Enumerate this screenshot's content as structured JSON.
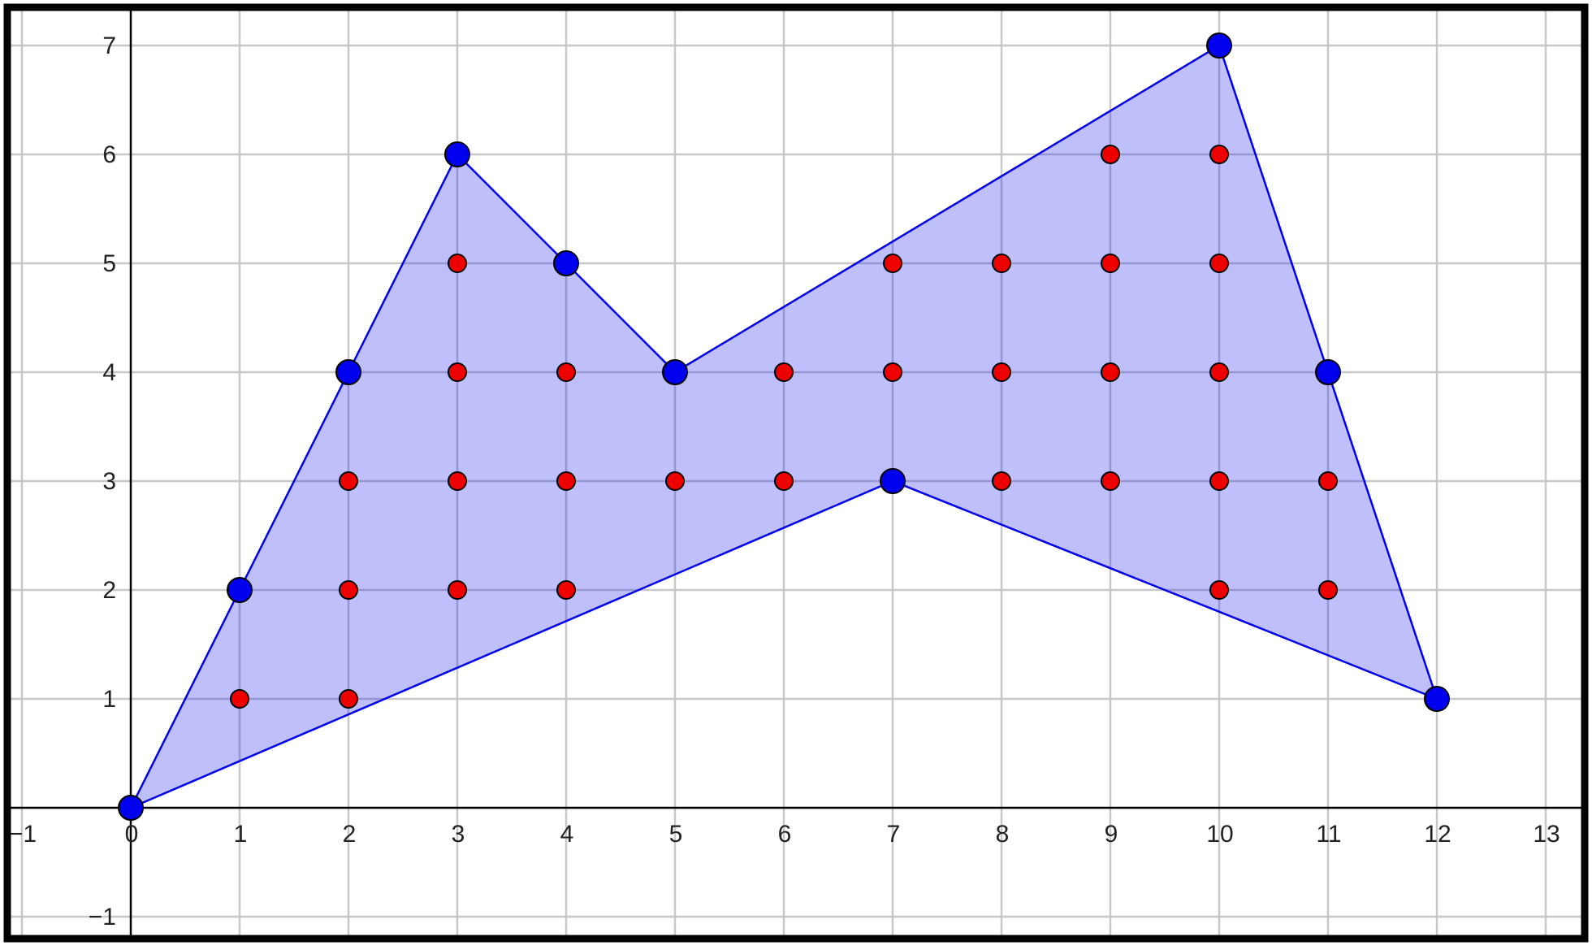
{
  "colors": {
    "polygon_fill": "#0000ee",
    "polygon_stroke": "#0000ee",
    "vertex": "#0000ee",
    "interior_point": "#ee0000",
    "grid": "#c8c8c8",
    "axis": "#000000"
  },
  "chart_data": {
    "type": "scatter",
    "title": "",
    "xlabel": "",
    "ylabel": "",
    "xlim": [
      -1,
      13
    ],
    "ylim": [
      -1,
      7
    ],
    "grid": true,
    "x_ticks": [
      -1,
      0,
      1,
      2,
      3,
      4,
      5,
      6,
      7,
      8,
      9,
      10,
      11,
      12,
      13
    ],
    "y_ticks": [
      -1,
      1,
      2,
      3,
      4,
      5,
      6,
      7
    ],
    "x_tick_labels": [
      "−1",
      "0",
      "1",
      "2",
      "3",
      "4",
      "5",
      "6",
      "7",
      "8",
      "9",
      "10",
      "11",
      "12",
      "13"
    ],
    "y_tick_labels": [
      "−1",
      "1",
      "2",
      "3",
      "4",
      "5",
      "6",
      "7"
    ],
    "polygon": [
      [
        0,
        0
      ],
      [
        1,
        2
      ],
      [
        2,
        4
      ],
      [
        3,
        6
      ],
      [
        4,
        5
      ],
      [
        5,
        4
      ],
      [
        10,
        7
      ],
      [
        11,
        4
      ],
      [
        12,
        1
      ],
      [
        7,
        3
      ]
    ],
    "series": [
      {
        "points": [
          [
            0,
            0
          ],
          [
            1,
            2
          ],
          [
            2,
            4
          ],
          [
            3,
            6
          ],
          [
            4,
            5
          ],
          [
            5,
            4
          ],
          [
            10,
            7
          ],
          [
            11,
            4
          ],
          [
            12,
            1
          ],
          [
            7,
            3
          ]
        ]
      },
      {
        "points": [
          [
            1,
            1
          ],
          [
            2,
            1
          ],
          [
            2,
            2
          ],
          [
            3,
            2
          ],
          [
            4,
            2
          ],
          [
            10,
            2
          ],
          [
            11,
            2
          ],
          [
            2,
            3
          ],
          [
            3,
            3
          ],
          [
            4,
            3
          ],
          [
            5,
            3
          ],
          [
            6,
            3
          ],
          [
            8,
            3
          ],
          [
            9,
            3
          ],
          [
            10,
            3
          ],
          [
            11,
            3
          ],
          [
            3,
            4
          ],
          [
            4,
            4
          ],
          [
            6,
            4
          ],
          [
            7,
            4
          ],
          [
            8,
            4
          ],
          [
            9,
            4
          ],
          [
            10,
            4
          ],
          [
            3,
            5
          ],
          [
            7,
            5
          ],
          [
            8,
            5
          ],
          [
            9,
            5
          ],
          [
            10,
            5
          ],
          [
            9,
            6
          ],
          [
            10,
            6
          ]
        ]
      }
    ]
  }
}
